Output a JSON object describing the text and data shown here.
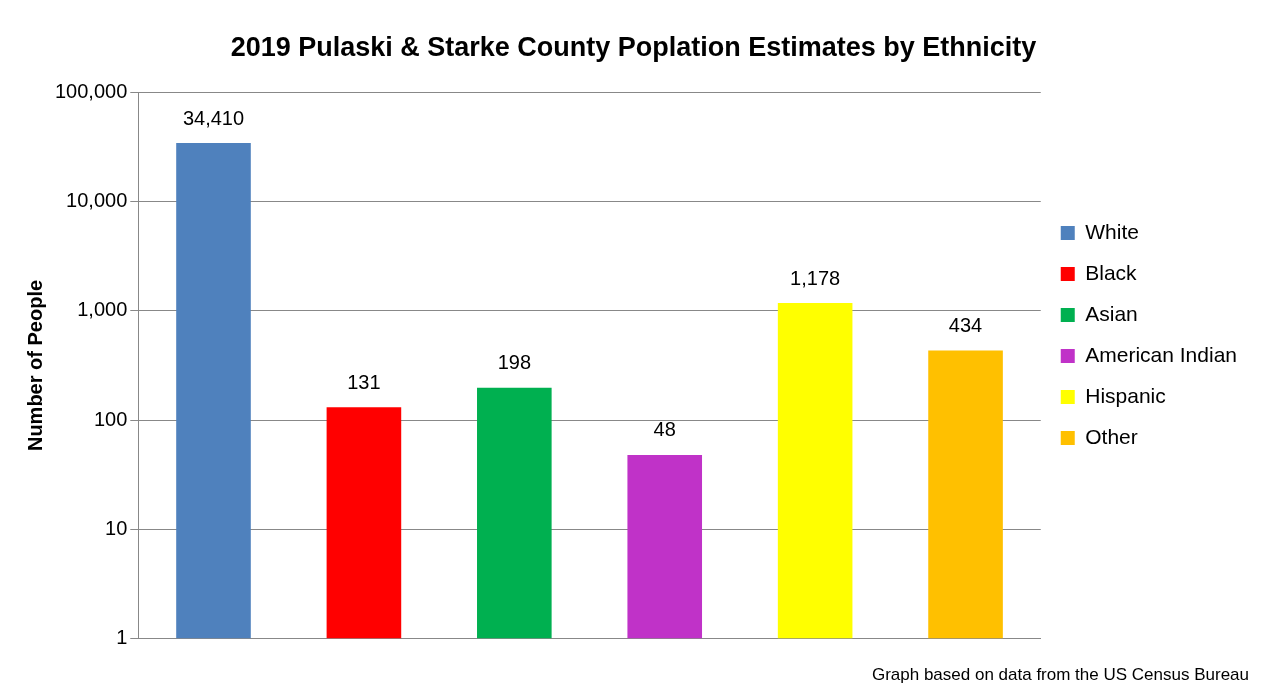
{
  "chart_data": {
    "type": "bar",
    "title": "2019 Pulaski & Starke County Poplation Estimates by Ethnicity",
    "ylabel": "Number of People",
    "categories": [
      null,
      null,
      null,
      null,
      null,
      null
    ],
    "series": [
      {
        "name": "White",
        "color": "#4f81bd",
        "values": [
          34410,
          null,
          null,
          null,
          null,
          null
        ],
        "value_labels": [
          "34,410",
          null,
          null,
          null,
          null,
          null
        ]
      },
      {
        "name": "Black",
        "color": "#ff0000",
        "values": [
          null,
          131,
          null,
          null,
          null,
          null
        ],
        "value_labels": [
          null,
          "131",
          null,
          null,
          null,
          null
        ]
      },
      {
        "name": "Asian",
        "color": "#00b050",
        "values": [
          null,
          null,
          198,
          null,
          null,
          null
        ],
        "value_labels": [
          null,
          null,
          "198",
          null,
          null,
          null
        ]
      },
      {
        "name": "American Indian",
        "color": "#c032c8",
        "values": [
          null,
          null,
          null,
          48,
          null,
          null
        ],
        "value_labels": [
          null,
          null,
          null,
          "48",
          null,
          null
        ]
      },
      {
        "name": "Hispanic",
        "color": "#ffff00",
        "values": [
          null,
          null,
          null,
          null,
          1178,
          null
        ],
        "value_labels": [
          null,
          null,
          null,
          null,
          "1,178",
          null
        ]
      },
      {
        "name": "Other",
        "color": "#ffc000",
        "values": [
          null,
          null,
          null,
          null,
          null,
          434
        ],
        "value_labels": [
          null,
          null,
          null,
          null,
          null,
          "434"
        ]
      }
    ],
    "log": "y",
    "ylim": [
      1,
      100000
    ],
    "yticks": [
      1,
      10,
      100,
      {
        "value": 1000,
        "label": "1,000"
      },
      {
        "value": 10000,
        "label": "10,000"
      },
      {
        "value": 100000,
        "label": "100,000"
      }
    ],
    "grid": "y",
    "legend": "right",
    "annotations": [
      "Graph based on data from the US Census Bureau"
    ]
  }
}
